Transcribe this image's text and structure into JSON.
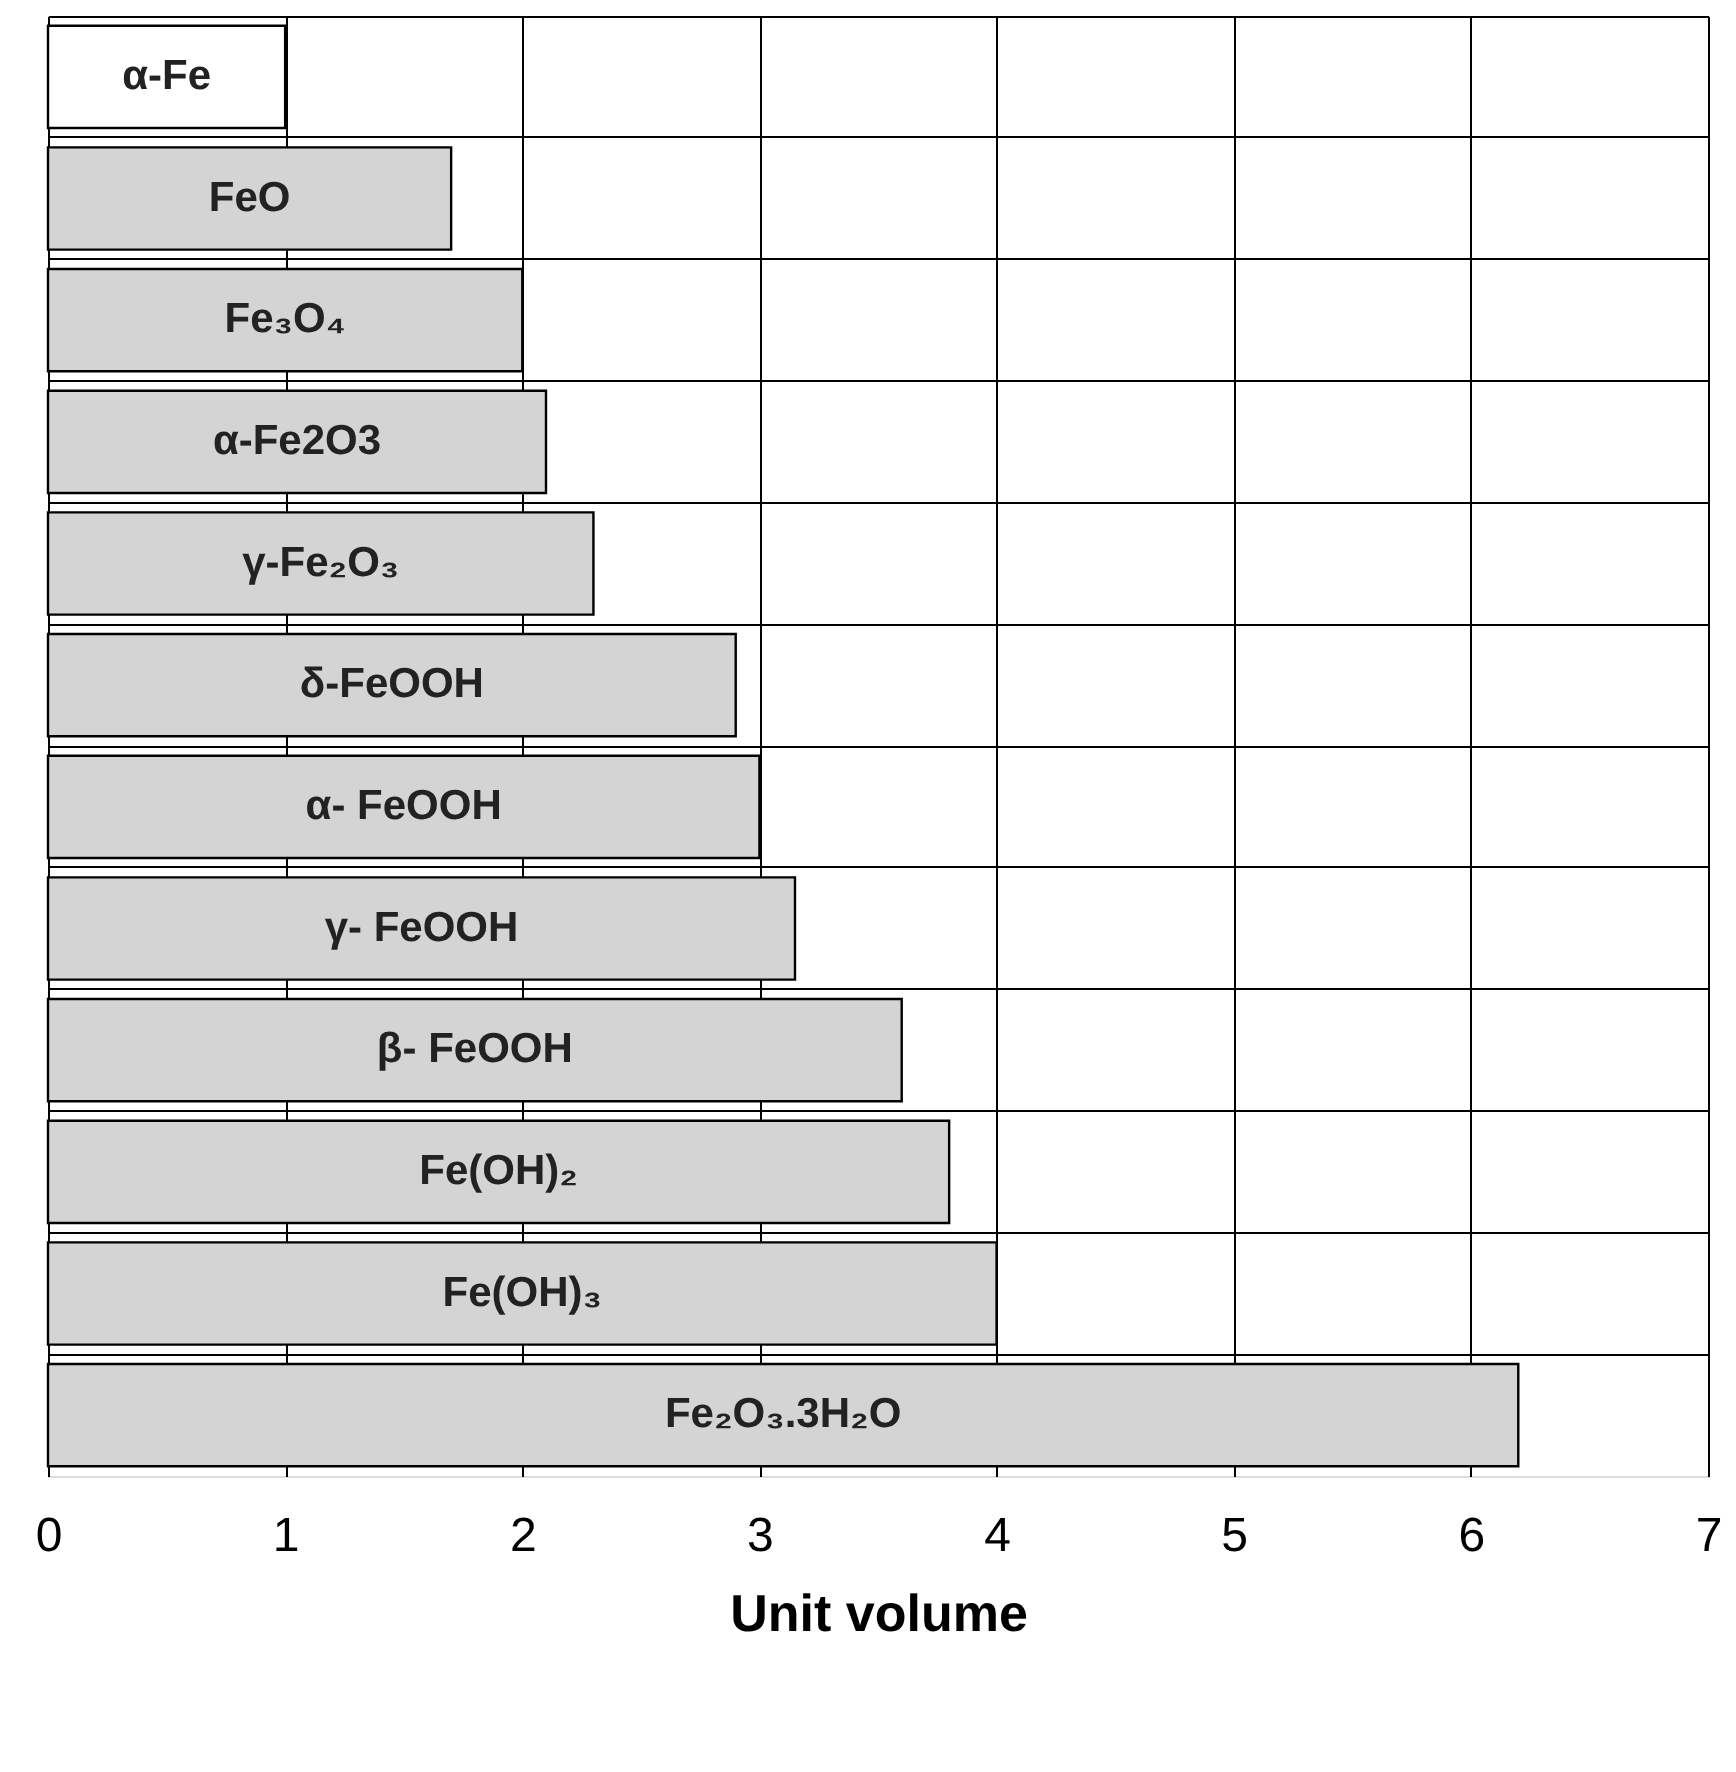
{
  "chart_data": {
    "type": "bar",
    "orientation": "horizontal",
    "xlabel": "Unit volume",
    "categories": [
      "α-Fe",
      "FeO",
      "Fe₃O₄",
      "α-Fe2O3",
      "γ-Fe₂O₃",
      "δ-FeOOH",
      "α- FeOOH",
      "γ- FeOOH",
      "β- FeOOH",
      "Fe(OH)₂",
      "Fe(OH)₃",
      "Fe₂O₃.3H₂O"
    ],
    "values": [
      1.0,
      1.7,
      2.0,
      2.1,
      2.3,
      2.9,
      3.0,
      3.15,
      3.6,
      3.8,
      4.0,
      6.2
    ],
    "colors": [
      "#ffffff",
      "#d4d4d4",
      "#d4d4d4",
      "#d4d4d4",
      "#d4d4d4",
      "#d4d4d4",
      "#d4d4d4",
      "#d4d4d4",
      "#d4d4d4",
      "#d4d4d4",
      "#d4d4d4",
      "#d4d4d4"
    ],
    "xlim": [
      0,
      7
    ],
    "xticks": [
      0,
      1,
      2,
      3,
      4,
      5,
      6,
      7
    ],
    "grid": true,
    "tick_labels": "x"
  }
}
